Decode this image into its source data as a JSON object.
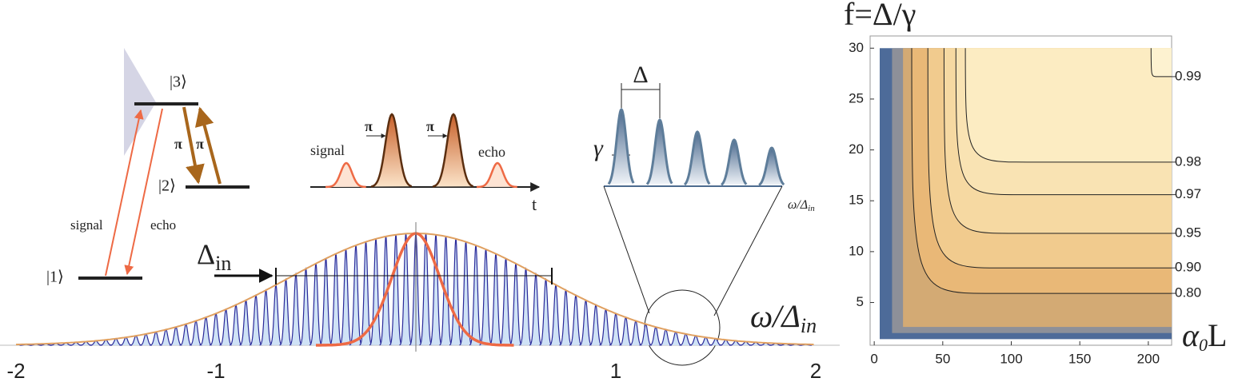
{
  "level_diagram": {
    "states": [
      "|1⟩",
      "|2⟩",
      "|3⟩"
    ],
    "signal": "signal",
    "echo": "echo",
    "pi": [
      "π",
      "π"
    ]
  },
  "pulse_sequence": {
    "labels": [
      "signal",
      "π",
      "π",
      "echo"
    ],
    "time_axis": "t"
  },
  "inset": {
    "spacing": "Δ",
    "width": "γ",
    "axis_label": {
      "main": "ω/Δ",
      "sub": "in"
    }
  },
  "spectrum": {
    "comb_spacing": {
      "main": "Δ",
      "sub": "in"
    },
    "axis_label": {
      "main": "ω/Δ",
      "sub": "in"
    },
    "xticks": [
      -2,
      -1,
      1,
      2
    ]
  },
  "chart_data": {
    "type": "contour",
    "title": "f=Δ/γ",
    "x_label": {
      "main": "α",
      "sub": "0",
      "tail": "L"
    },
    "xlim": [
      -3,
      217
    ],
    "ylim": [
      0.8,
      31.2
    ],
    "xticks": [
      0,
      50,
      100,
      150,
      200
    ],
    "yticks": [
      5,
      10,
      15,
      20,
      25,
      30
    ],
    "levels": [
      {
        "value": 0.99,
        "y": 27.2,
        "color": "#fdf2d0"
      },
      {
        "value": 0.98,
        "y": 18.8,
        "color": "#fcecc2"
      },
      {
        "value": 0.97,
        "y": 15.6,
        "color": "#f9e3b3"
      },
      {
        "value": 0.95,
        "y": 11.8,
        "color": "#f6d9a2"
      },
      {
        "value": 0.9,
        "label": "0.90",
        "y": 8.4,
        "color": "#f1cb8e"
      },
      {
        "value": 0.8,
        "label": "0.80",
        "y": 5.9,
        "color": "#e9b877"
      }
    ]
  }
}
